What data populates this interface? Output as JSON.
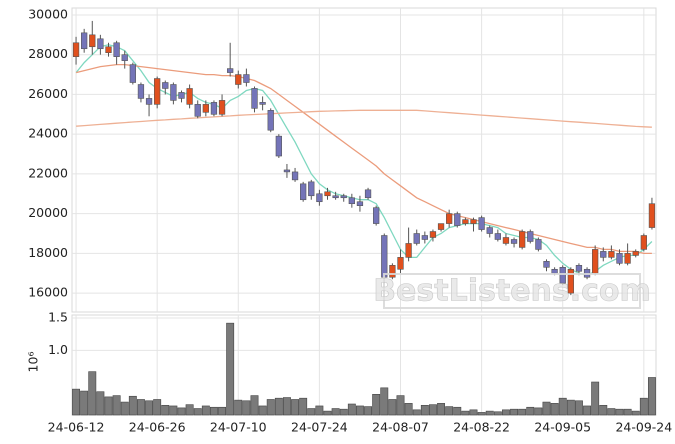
{
  "chart_data": [
    {
      "type": "candlestick",
      "up_color": "#e0501e",
      "down_color": "#7474b8",
      "grid": true,
      "ylim": [
        15050,
        30350
      ],
      "yticks": [
        16000,
        18000,
        20000,
        22000,
        24000,
        26000,
        28000,
        30000
      ],
      "watermark": "BestListens.com",
      "open": [
        27900,
        29100,
        28400,
        28800,
        28100,
        28600,
        28000,
        27500,
        26500,
        25800,
        25500,
        26600,
        26500,
        26100,
        25500,
        25500,
        25100,
        25600,
        25000,
        27300,
        26500,
        27000,
        26300,
        25600,
        25200,
        23900,
        22200,
        22100,
        21500,
        21600,
        21000,
        20900,
        20900,
        20900,
        20800,
        20600,
        21200,
        20300,
        18900,
        16800,
        17200,
        17800,
        19000,
        18900,
        18800,
        19200,
        19500,
        20000,
        19500,
        19500,
        19800,
        19300,
        19000,
        18500,
        18700,
        18300,
        19100,
        18700,
        17600,
        17200,
        17300,
        16000,
        17400,
        17200,
        17000,
        18100,
        17800,
        18000,
        17500,
        17900,
        18200,
        19300
      ],
      "high": [
        28900,
        29300,
        29700,
        29000,
        28600,
        28700,
        28200,
        27600,
        26600,
        26000,
        26900,
        26700,
        26600,
        26200,
        26500,
        25700,
        25700,
        25700,
        26000,
        28600,
        27200,
        27300,
        26400,
        25900,
        25300,
        24000,
        22500,
        22300,
        21600,
        21700,
        21200,
        21300,
        21100,
        21000,
        21000,
        20900,
        21300,
        20400,
        19000,
        17500,
        18200,
        19300,
        19200,
        19100,
        19200,
        19500,
        20200,
        20100,
        19800,
        19800,
        19900,
        19400,
        19200,
        19000,
        18800,
        19200,
        19200,
        18800,
        17700,
        17300,
        17400,
        17300,
        17500,
        17300,
        18400,
        18300,
        18400,
        18200,
        18500,
        18200,
        19000,
        20800
      ],
      "low": [
        27500,
        28100,
        28000,
        28000,
        27900,
        27500,
        27300,
        26500,
        25600,
        24900,
        25300,
        26000,
        25500,
        25600,
        25300,
        24800,
        24900,
        24900,
        24900,
        26900,
        26300,
        26400,
        25100,
        25200,
        24100,
        22800,
        21800,
        21600,
        20600,
        20700,
        20400,
        20700,
        20700,
        20600,
        20300,
        20100,
        20700,
        19400,
        16500,
        16700,
        17000,
        17600,
        18400,
        18500,
        18600,
        19100,
        19300,
        19300,
        19400,
        19100,
        19100,
        18800,
        18600,
        18400,
        18300,
        18200,
        18500,
        18100,
        17100,
        16900,
        16400,
        15900,
        16900,
        16700,
        16900,
        17600,
        17700,
        17400,
        17400,
        17800,
        18100,
        19200
      ],
      "close": [
        28600,
        28300,
        29000,
        28300,
        28400,
        27900,
        27700,
        26600,
        25800,
        25500,
        26800,
        26300,
        25700,
        25800,
        26300,
        24900,
        25500,
        25000,
        25700,
        27100,
        27000,
        26600,
        25300,
        25500,
        24200,
        22900,
        22100,
        21700,
        20700,
        20900,
        20600,
        21100,
        20800,
        20800,
        20500,
        20400,
        20800,
        19500,
        16800,
        17400,
        17800,
        18500,
        18500,
        18700,
        19100,
        19500,
        20000,
        19400,
        19700,
        19700,
        19200,
        19000,
        18700,
        18800,
        18500,
        19100,
        18600,
        18200,
        17300,
        17000,
        16500,
        17200,
        17100,
        16800,
        18200,
        17800,
        18100,
        17500,
        18000,
        18100,
        18900,
        20500
      ],
      "lines": [
        {
          "color": "#7fd8c0",
          "values": [
            27100,
            27600,
            28000,
            28400,
            28500,
            28400,
            28200,
            27700,
            27200,
            26600,
            26300,
            26100,
            25900,
            26000,
            26100,
            25800,
            25600,
            25500,
            25300,
            25700,
            25900,
            26200,
            26300,
            26200,
            25700,
            25000,
            24300,
            23600,
            22800,
            22000,
            21500,
            21200,
            21000,
            20900,
            20800,
            20700,
            20700,
            20500,
            19800,
            19000,
            18200,
            17800,
            17800,
            18300,
            18800,
            19000,
            19300,
            19400,
            19500,
            19500,
            19500,
            19400,
            19300,
            19000,
            18900,
            18800,
            18800,
            18700,
            18400,
            17900,
            17500,
            17200,
            17000,
            16900,
            17100,
            17400,
            17600,
            17800,
            17900,
            17900,
            18200,
            18600
          ]
        },
        {
          "color": "#eb9c7c",
          "values": [
            27100,
            27200,
            27300,
            27400,
            27450,
            27500,
            27500,
            27450,
            27400,
            27350,
            27300,
            27250,
            27200,
            27150,
            27100,
            27050,
            27000,
            27000,
            26950,
            26950,
            26900,
            26800,
            26700,
            26500,
            26300,
            26000,
            25700,
            25400,
            25100,
            24800,
            24500,
            24200,
            23900,
            23600,
            23300,
            23000,
            22700,
            22400,
            22000,
            21700,
            21400,
            21100,
            20800,
            20600,
            20400,
            20200,
            20000,
            19900,
            19800,
            19700,
            19600,
            19500,
            19400,
            19300,
            19200,
            19100,
            19000,
            18900,
            18800,
            18700,
            18600,
            18500,
            18400,
            18300,
            18300,
            18200,
            18200,
            18100,
            18100,
            18100,
            18000,
            18000
          ]
        },
        {
          "color": "#eeb094",
          "values": [
            24400,
            24430,
            24460,
            24490,
            24520,
            24550,
            24580,
            24610,
            24640,
            24670,
            24700,
            24720,
            24750,
            24770,
            24800,
            24820,
            24850,
            24870,
            24900,
            24920,
            24950,
            24970,
            24990,
            25010,
            25030,
            25050,
            25070,
            25090,
            25110,
            25130,
            25150,
            25160,
            25170,
            25180,
            25190,
            25200,
            25200,
            25200,
            25200,
            25200,
            25200,
            25200,
            25200,
            25170,
            25140,
            25110,
            25080,
            25050,
            25020,
            24990,
            24960,
            24930,
            24900,
            24870,
            24840,
            24810,
            24780,
            24750,
            24720,
            24690,
            24660,
            24630,
            24600,
            24570,
            24540,
            24510,
            24480,
            24450,
            24420,
            24390,
            24370,
            24350
          ]
        }
      ]
    },
    {
      "type": "bar",
      "color": "#7a7a7a",
      "grid": true,
      "ylabel": "10⁶",
      "ylim": [
        0,
        1.546
      ],
      "yticks": [
        {
          "value": 1,
          "label": "1.0"
        },
        1.5
      ],
      "categories": [
        "24-06-12",
        null,
        null,
        null,
        null,
        null,
        null,
        null,
        null,
        null,
        "24-06-26",
        null,
        null,
        null,
        null,
        null,
        null,
        null,
        null,
        null,
        "24-07-10",
        null,
        null,
        null,
        null,
        null,
        null,
        null,
        null,
        null,
        "24-07-24",
        null,
        null,
        null,
        null,
        null,
        null,
        null,
        null,
        null,
        "24-08-07",
        null,
        null,
        null,
        null,
        null,
        null,
        null,
        null,
        null,
        "24-08-22",
        null,
        null,
        null,
        null,
        null,
        null,
        null,
        null,
        null,
        "24-09-05",
        null,
        null,
        null,
        null,
        null,
        null,
        null,
        null,
        null,
        "24-09-24",
        null
      ],
      "values": [
        0.4,
        0.37,
        0.67,
        0.36,
        0.28,
        0.3,
        0.2,
        0.29,
        0.24,
        0.22,
        0.24,
        0.15,
        0.14,
        0.11,
        0.16,
        0.1,
        0.14,
        0.12,
        0.12,
        1.42,
        0.23,
        0.22,
        0.3,
        0.14,
        0.24,
        0.26,
        0.27,
        0.24,
        0.26,
        0.1,
        0.14,
        0.06,
        0.1,
        0.09,
        0.17,
        0.14,
        0.13,
        0.32,
        0.42,
        0.24,
        0.3,
        0.18,
        0.08,
        0.15,
        0.16,
        0.18,
        0.13,
        0.12,
        0.06,
        0.08,
        0.04,
        0.06,
        0.05,
        0.08,
        0.09,
        0.09,
        0.12,
        0.11,
        0.2,
        0.18,
        0.26,
        0.23,
        0.22,
        0.14,
        0.51,
        0.15,
        0.1,
        0.09,
        0.09,
        0.06,
        0.26,
        0.58
      ]
    }
  ]
}
